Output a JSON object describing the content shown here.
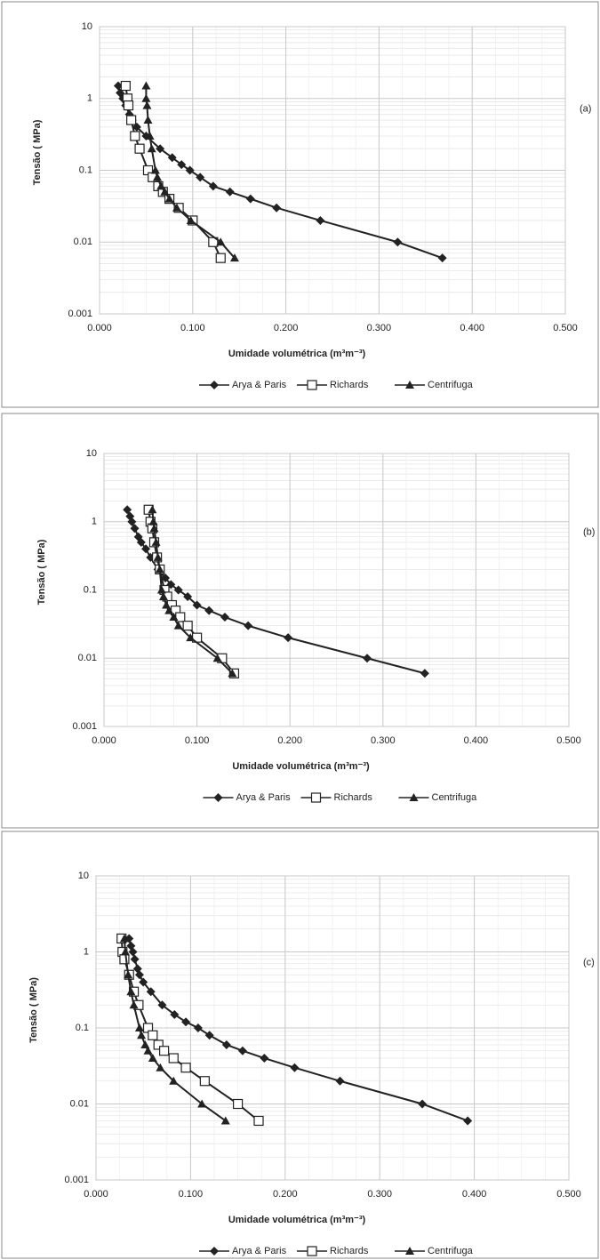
{
  "chart_data": [
    {
      "type": "line",
      "panel_label": "(a)",
      "xlabel": "Umidade volumétrica (m³m⁻³)",
      "ylabel": "Tensão ( MPa)",
      "xlim": [
        0,
        0.5
      ],
      "ylim": [
        0.001,
        10
      ],
      "log_y": true,
      "grid": true,
      "xticks": [
        {
          "value": 0,
          "label": "0.000"
        },
        {
          "value": 0.1,
          "label": "0.100"
        },
        {
          "value": 0.2,
          "label": "0.200"
        },
        {
          "value": 0.3,
          "label": "0.300"
        },
        {
          "value": 0.4,
          "label": "0.400"
        },
        {
          "value": 0.5,
          "label": "0.500"
        }
      ],
      "yticks": [
        10,
        1,
        0.1,
        0.01,
        0.001
      ],
      "series": [
        {
          "name": "Arya & Paris",
          "color": "#222222",
          "marker": "diamond",
          "x": [
            0.02,
            0.022,
            0.025,
            0.028,
            0.032,
            0.035,
            0.04,
            0.05,
            0.065,
            0.078,
            0.088,
            0.097,
            0.108,
            0.122,
            0.14,
            0.162,
            0.19,
            0.237,
            0.32,
            0.368
          ],
          "values": [
            1.5,
            1.2,
            1,
            0.8,
            0.6,
            0.5,
            0.4,
            0.3,
            0.2,
            0.15,
            0.12,
            0.1,
            0.08,
            0.06,
            0.05,
            0.04,
            0.03,
            0.02,
            0.01,
            0.006
          ]
        },
        {
          "name": "Richards",
          "color": "#222222",
          "marker": "square",
          "x": [
            0.028,
            0.03,
            0.031,
            0.034,
            0.038,
            0.043,
            0.052,
            0.057,
            0.063,
            0.068,
            0.075,
            0.085,
            0.1,
            0.122,
            0.13
          ],
          "values": [
            1.5,
            1,
            0.8,
            0.5,
            0.3,
            0.2,
            0.1,
            0.08,
            0.06,
            0.05,
            0.04,
            0.03,
            0.02,
            0.01,
            0.006
          ]
        },
        {
          "name": "Centrifuga",
          "color": "#222222",
          "marker": "triangle",
          "x": [
            0.05,
            0.05,
            0.051,
            0.052,
            0.054,
            0.056,
            0.06,
            0.062,
            0.066,
            0.07,
            0.075,
            0.083,
            0.098,
            0.13,
            0.145
          ],
          "values": [
            1.5,
            1,
            0.8,
            0.5,
            0.3,
            0.2,
            0.1,
            0.08,
            0.06,
            0.05,
            0.04,
            0.03,
            0.02,
            0.01,
            0.006
          ]
        }
      ]
    },
    {
      "type": "line",
      "panel_label": "(b)",
      "xlabel": "Umidade volumétrica (m³m⁻³)",
      "ylabel": "Tensão ( MPa)",
      "xlim": [
        0,
        0.5
      ],
      "ylim": [
        0.001,
        10
      ],
      "log_y": true,
      "grid": true,
      "xticks": [
        {
          "value": 0,
          "label": "0.000"
        },
        {
          "value": 0.1,
          "label": "0.100"
        },
        {
          "value": 0.2,
          "label": "0.200"
        },
        {
          "value": 0.3,
          "label": "0.300"
        },
        {
          "value": 0.4,
          "label": "0.400"
        },
        {
          "value": 0.5,
          "label": "0.500"
        }
      ],
      "yticks": [
        10,
        1,
        0.1,
        0.01,
        0.001
      ],
      "series": [
        {
          "name": "Arya & Paris",
          "color": "#222222",
          "marker": "diamond",
          "x": [
            0.025,
            0.028,
            0.03,
            0.033,
            0.037,
            0.04,
            0.045,
            0.05,
            0.058,
            0.066,
            0.072,
            0.08,
            0.09,
            0.1,
            0.113,
            0.13,
            0.155,
            0.198,
            0.283,
            0.345
          ],
          "values": [
            1.5,
            1.2,
            1,
            0.8,
            0.6,
            0.5,
            0.4,
            0.3,
            0.2,
            0.15,
            0.12,
            0.1,
            0.08,
            0.06,
            0.05,
            0.04,
            0.03,
            0.02,
            0.01,
            0.006
          ]
        },
        {
          "name": "Richards",
          "color": "#222222",
          "marker": "square",
          "x": [
            0.048,
            0.05,
            0.052,
            0.054,
            0.057,
            0.06,
            0.065,
            0.068,
            0.073,
            0.077,
            0.082,
            0.09,
            0.1,
            0.127,
            0.14
          ],
          "values": [
            1.5,
            1,
            0.8,
            0.5,
            0.3,
            0.2,
            0.1,
            0.08,
            0.06,
            0.05,
            0.04,
            0.03,
            0.02,
            0.01,
            0.006
          ]
        },
        {
          "name": "Centrifuga",
          "color": "#222222",
          "marker": "triangle",
          "x": [
            0.052,
            0.053,
            0.054,
            0.056,
            0.058,
            0.06,
            0.062,
            0.064,
            0.067,
            0.07,
            0.075,
            0.08,
            0.093,
            0.122,
            0.138
          ],
          "values": [
            1.5,
            1,
            0.8,
            0.5,
            0.3,
            0.2,
            0.1,
            0.08,
            0.06,
            0.05,
            0.04,
            0.03,
            0.02,
            0.01,
            0.006
          ]
        }
      ]
    },
    {
      "type": "line",
      "panel_label": "(c)",
      "xlabel": "Umidade volumétrica (m³m⁻³)",
      "ylabel": "Tensão ( MPa)",
      "xlim": [
        0,
        0.5
      ],
      "ylim": [
        0.001,
        10
      ],
      "log_y": true,
      "grid": true,
      "xticks": [
        {
          "value": 0,
          "label": "0.000"
        },
        {
          "value": 0.1,
          "label": "0.100"
        },
        {
          "value": 0.2,
          "label": "0.200"
        },
        {
          "value": 0.3,
          "label": "0.300"
        },
        {
          "value": 0.4,
          "label": "0.400"
        },
        {
          "value": 0.5,
          "label": "0.500"
        }
      ],
      "yticks": [
        10,
        1,
        0.1,
        0.01,
        0.001
      ],
      "series": [
        {
          "name": "Arya & Paris",
          "color": "#222222",
          "marker": "diamond",
          "x": [
            0.035,
            0.037,
            0.039,
            0.041,
            0.044,
            0.046,
            0.05,
            0.058,
            0.07,
            0.083,
            0.095,
            0.108,
            0.12,
            0.138,
            0.155,
            0.178,
            0.21,
            0.258,
            0.345,
            0.393
          ],
          "values": [
            1.5,
            1.2,
            1,
            0.8,
            0.6,
            0.5,
            0.4,
            0.3,
            0.2,
            0.15,
            0.12,
            0.1,
            0.08,
            0.06,
            0.05,
            0.04,
            0.03,
            0.02,
            0.01,
            0.006
          ]
        },
        {
          "name": "Richards",
          "color": "#222222",
          "marker": "square",
          "x": [
            0.027,
            0.028,
            0.03,
            0.035,
            0.04,
            0.045,
            0.055,
            0.06,
            0.066,
            0.072,
            0.082,
            0.095,
            0.115,
            0.15,
            0.172
          ],
          "values": [
            1.5,
            1,
            0.8,
            0.5,
            0.3,
            0.2,
            0.1,
            0.08,
            0.06,
            0.05,
            0.04,
            0.03,
            0.02,
            0.01,
            0.006
          ]
        },
        {
          "name": "Centrifuga",
          "color": "#222222",
          "marker": "triangle",
          "x": [
            0.03,
            0.031,
            0.034,
            0.037,
            0.04,
            0.046,
            0.048,
            0.052,
            0.055,
            0.06,
            0.068,
            0.082,
            0.112,
            0.137
          ],
          "values": [
            1.5,
            1,
            0.5,
            0.3,
            0.2,
            0.1,
            0.08,
            0.06,
            0.05,
            0.04,
            0.03,
            0.02,
            0.01,
            0.006
          ]
        }
      ]
    }
  ]
}
